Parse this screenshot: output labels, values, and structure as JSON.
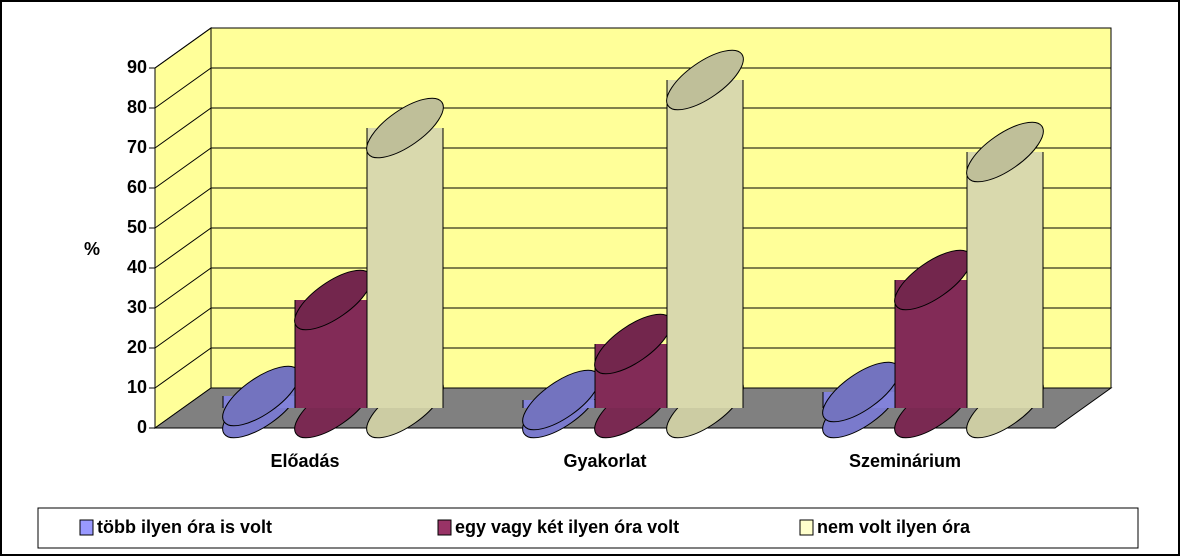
{
  "chart_data": {
    "type": "bar3d",
    "y_label": "%",
    "categories": [
      "Előadás",
      "Gyakorlat",
      "Szeminárium"
    ],
    "series": [
      {
        "name": "több ilyen óra is volt",
        "color": "#9999ff",
        "values": [
          3,
          2,
          4
        ]
      },
      {
        "name": "egy vagy két ilyen óra volt",
        "color": "#993366",
        "values": [
          27,
          16,
          32
        ]
      },
      {
        "name": "nem volt ilyen óra",
        "color": "#ffffcc",
        "values": [
          70,
          82,
          64
        ]
      }
    ],
    "ylim": [
      0,
      90
    ],
    "yticks": [
      0,
      10,
      20,
      30,
      40,
      50,
      60,
      70,
      80,
      90
    ],
    "grid": true,
    "legend": "bottom"
  }
}
